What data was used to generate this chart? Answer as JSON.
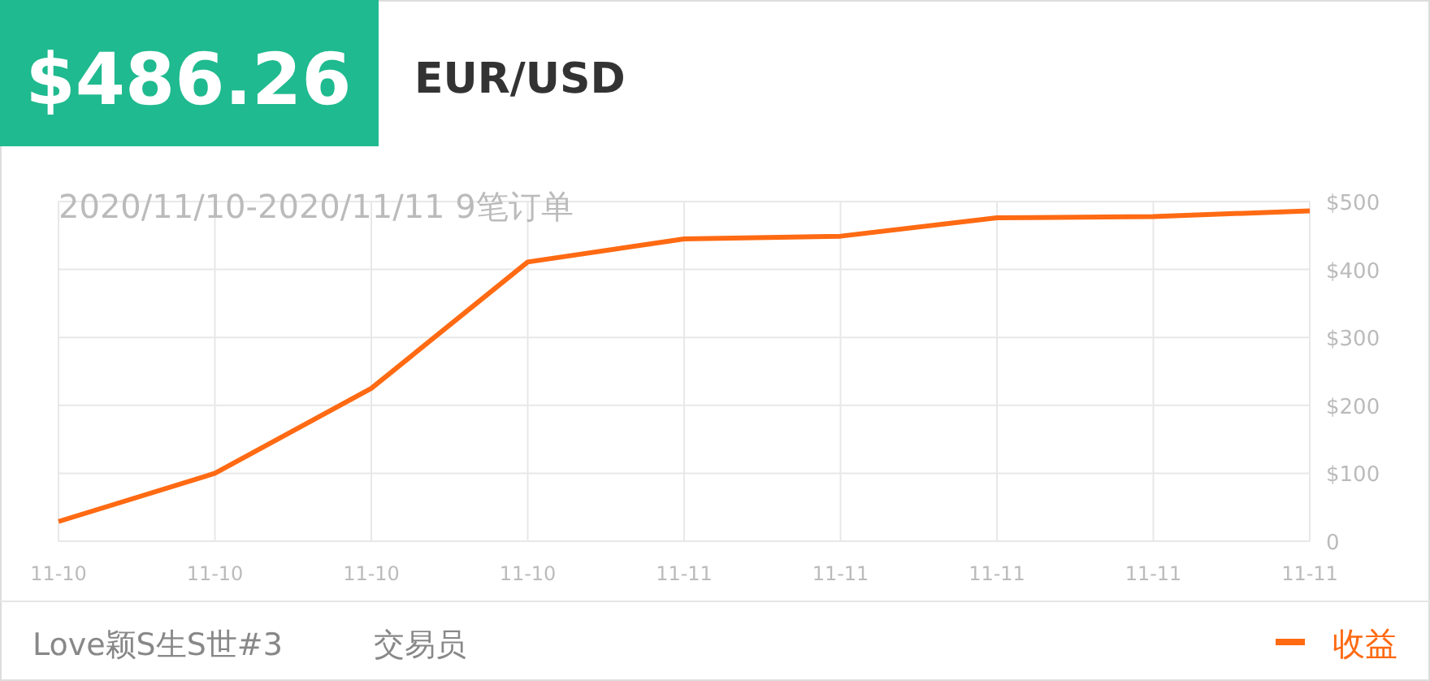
{
  "chart_data": {
    "type": "line",
    "title": "$486.26",
    "subtitle": "EUR/USD",
    "categories": [
      "11-10",
      "11-10",
      "11-10",
      "11-10",
      "11-11",
      "11-11",
      "11-11",
      "11-11",
      "11-11"
    ],
    "series": [
      {
        "name": "收益",
        "color": "#ff6a13",
        "values": [
          29,
          100,
          225,
          411,
          445,
          449,
          476,
          478,
          486.26
        ]
      }
    ],
    "ylim": [
      0,
      500
    ],
    "yticks": [
      {
        "value": 0,
        "label": "0"
      },
      {
        "value": 100,
        "label": "$100"
      },
      {
        "value": 200,
        "label": "$200"
      },
      {
        "value": 300,
        "label": "$300"
      },
      {
        "value": 400,
        "label": "$400"
      },
      {
        "value": 500,
        "label": "$500"
      }
    ],
    "grid": true,
    "legend": "bottom right",
    "marker": "none",
    "line_style": "solid",
    "annotations": [
      "2020/11/10-2020/11/11 9笔订单",
      "Love颖S生S世#3",
      "交易员"
    ]
  }
}
